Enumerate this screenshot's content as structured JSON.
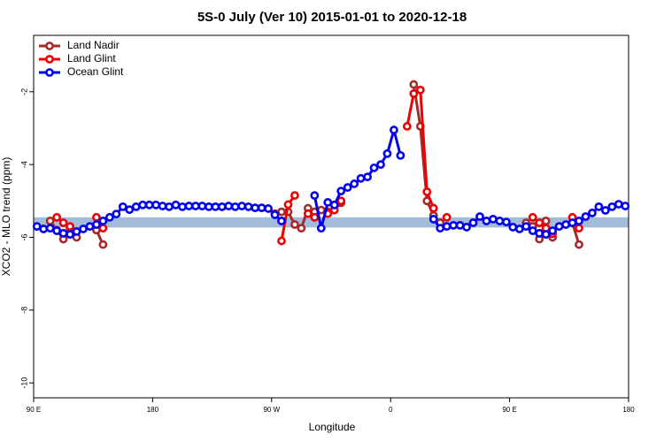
{
  "chart_data": {
    "type": "line",
    "title": "5S-0 July (Ver 10)   2015-01-01 to 2020-12-18",
    "xlabel": "Longitude",
    "ylabel": "XCO2 - MLO trend (ppm)",
    "legend": "top-left",
    "xlim": [
      90,
      540
    ],
    "ylim": [
      -10.41,
      -0.45
    ],
    "xticks": [
      {
        "value": 90,
        "label": "90 E"
      },
      180,
      {
        "value": 270,
        "label": "90 W"
      },
      {
        "value": 360,
        "label": "0"
      },
      {
        "value": 450,
        "label": "90 E"
      },
      {
        "value": 540,
        "label": "180"
      }
    ],
    "yticks": [
      -2,
      -4,
      -6,
      -8,
      -10
    ],
    "shaded_band": {
      "color": "#a4bcdc",
      "range": [
        -5.73,
        -5.45
      ]
    },
    "x": [
      92.5,
      97.5,
      102.5,
      107.5,
      112.5,
      117.5,
      122.5,
      127.5,
      132.5,
      137.5,
      142.5,
      147.5,
      152.5,
      157.5,
      162.5,
      167.5,
      172.5,
      177.5,
      182.5,
      187.5,
      192.5,
      197.5,
      202.5,
      207.5,
      212.5,
      217.5,
      222.5,
      227.5,
      232.5,
      237.5,
      242.5,
      247.5,
      252.5,
      257.5,
      262.5,
      267.5,
      272.5,
      277.5,
      282.5,
      287.5,
      292.5,
      297.5,
      302.5,
      307.5,
      312.5,
      317.5,
      322.5,
      327.5,
      332.5,
      337.5,
      342.5,
      347.5,
      352.5,
      357.5,
      362.5,
      367.5,
      372.5,
      377.5,
      382.5,
      387.5,
      392.5,
      397.5,
      402.5,
      407.5,
      412.5,
      417.5,
      422.5,
      427.5,
      432.5,
      437.5,
      442.5,
      447.5,
      452.5,
      457.5,
      462.5,
      467.5,
      472.5,
      477.5,
      482.5,
      487.5,
      492.5,
      497.5,
      502.5,
      507.5,
      512.5,
      517.5,
      522.5,
      527.5,
      532.5,
      537.5
    ],
    "series": [
      {
        "name": "Land Nadir",
        "color": "#a52a2a",
        "values": [
          null,
          null,
          -5.55,
          -5.8,
          -6.05,
          -5.75,
          -6.0,
          null,
          null,
          -5.8,
          -6.2,
          null,
          null,
          null,
          null,
          null,
          null,
          null,
          null,
          null,
          null,
          null,
          null,
          null,
          null,
          null,
          null,
          null,
          null,
          null,
          null,
          null,
          null,
          null,
          null,
          null,
          -5.35,
          -5.3,
          -5.3,
          -5.65,
          -5.75,
          -5.2,
          -5.3,
          -5.25,
          -5.3,
          -5.25,
          -5.05,
          null,
          null,
          null,
          null,
          null,
          null,
          null,
          null,
          null,
          null,
          -1.8,
          -2.95,
          -5.0,
          -5.4,
          -5.6,
          null,
          null,
          null,
          null,
          null,
          null,
          null,
          null,
          null,
          null,
          null,
          null,
          -5.6,
          -5.7,
          -6.05,
          -5.55,
          -6.0,
          null,
          null,
          -5.6,
          -6.2,
          null,
          null,
          null,
          null,
          null,
          null,
          null
        ]
      },
      {
        "name": "Land Glint",
        "color": "#ee0000",
        "values": [
          null,
          null,
          null,
          -5.45,
          -5.6,
          -5.7,
          null,
          null,
          null,
          -5.45,
          -5.75,
          null,
          null,
          null,
          null,
          null,
          null,
          null,
          null,
          null,
          null,
          null,
          null,
          null,
          null,
          null,
          null,
          null,
          null,
          null,
          null,
          null,
          null,
          null,
          null,
          null,
          null,
          -6.1,
          -5.1,
          -4.85,
          null,
          -5.35,
          -5.45,
          null,
          -5.35,
          -5.25,
          -5.0,
          null,
          null,
          null,
          null,
          null,
          null,
          null,
          null,
          null,
          -2.95,
          -2.05,
          -1.95,
          -4.75,
          -5.2,
          null,
          -5.45,
          null,
          null,
          null,
          null,
          null,
          null,
          null,
          null,
          null,
          null,
          null,
          null,
          -5.45,
          -5.6,
          -5.75,
          -5.9,
          null,
          null,
          -5.45,
          -5.75,
          null,
          null,
          null,
          null,
          null,
          null,
          null
        ]
      },
      {
        "name": "Ocean Glint",
        "color": "#0000ee",
        "values": [
          -5.7,
          -5.77,
          -5.75,
          -5.82,
          -5.89,
          -5.92,
          -5.84,
          -5.77,
          -5.7,
          -5.65,
          -5.55,
          -5.45,
          -5.36,
          -5.16,
          -5.24,
          -5.16,
          -5.11,
          -5.11,
          -5.11,
          -5.14,
          -5.16,
          -5.11,
          -5.16,
          -5.14,
          -5.14,
          -5.14,
          -5.16,
          -5.16,
          -5.16,
          -5.14,
          -5.16,
          -5.14,
          -5.16,
          -5.19,
          -5.19,
          -5.21,
          -5.38,
          -5.55,
          null,
          null,
          null,
          null,
          -4.85,
          -5.75,
          -5.04,
          -5.11,
          -4.73,
          -4.63,
          -4.53,
          -4.38,
          -4.34,
          -4.09,
          -4.0,
          -3.7,
          -3.05,
          -3.75,
          null,
          null,
          null,
          null,
          -5.5,
          -5.75,
          -5.7,
          -5.67,
          -5.67,
          -5.72,
          -5.6,
          -5.43,
          -5.55,
          -5.5,
          -5.55,
          -5.58,
          -5.72,
          -5.77,
          -5.7,
          -5.82,
          -5.89,
          -5.92,
          -5.82,
          -5.7,
          -5.65,
          -5.6,
          -5.55,
          -5.43,
          -5.33,
          -5.16,
          -5.26,
          -5.16,
          -5.09,
          -5.14
        ]
      }
    ]
  }
}
